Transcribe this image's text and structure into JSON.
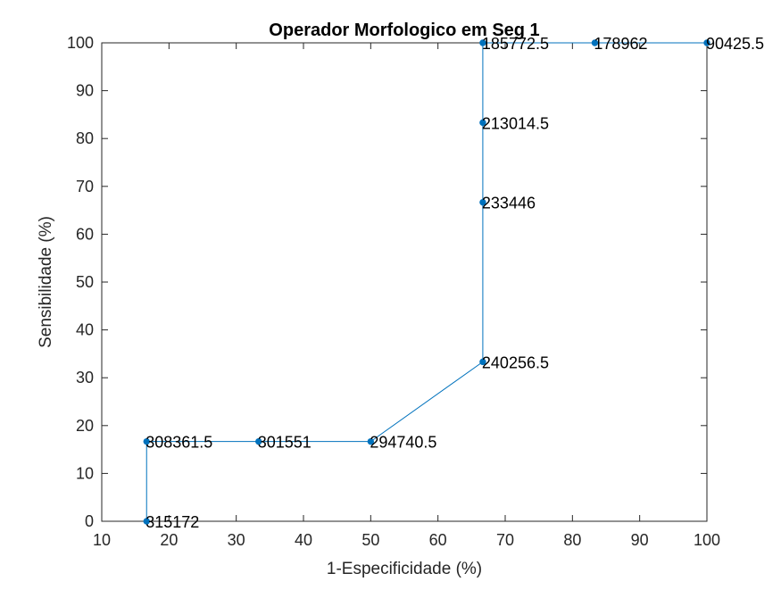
{
  "chart_data": {
    "type": "line",
    "title": "Operador Morfologico em Seg 1",
    "xlabel": "1-Especificidade (%)",
    "ylabel": "Sensibilidade (%)",
    "xlim": [
      10,
      100
    ],
    "ylim": [
      0,
      100
    ],
    "xticks": [
      10,
      20,
      30,
      40,
      50,
      60,
      70,
      80,
      90,
      100
    ],
    "yticks": [
      0,
      10,
      20,
      30,
      40,
      50,
      60,
      70,
      80,
      90,
      100
    ],
    "grid": false,
    "legend": "none",
    "line_color": "#0072BD",
    "series": [
      {
        "points": [
          {
            "x": 16.67,
            "y": 0,
            "label": "315172"
          },
          {
            "x": 16.67,
            "y": 16.67,
            "label": "308361.5"
          },
          {
            "x": 33.33,
            "y": 16.67,
            "label": "301551"
          },
          {
            "x": 50,
            "y": 16.67,
            "label": "294740.5"
          },
          {
            "x": 66.67,
            "y": 33.33,
            "label": "240256.5"
          },
          {
            "x": 66.67,
            "y": 66.67,
            "label": "233446"
          },
          {
            "x": 66.67,
            "y": 83.33,
            "label": "213014.5"
          },
          {
            "x": 66.67,
            "y": 100,
            "label": "185772.5"
          },
          {
            "x": 83.33,
            "y": 100,
            "label": "178962"
          },
          {
            "x": 100,
            "y": 100,
            "label": "90425.5"
          }
        ]
      }
    ]
  }
}
